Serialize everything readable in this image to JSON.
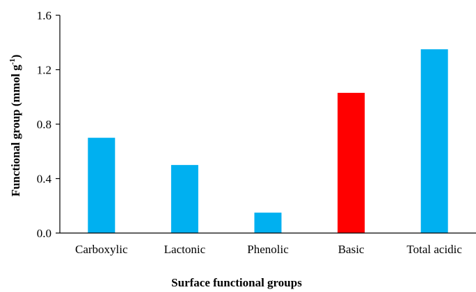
{
  "chart_data": {
    "type": "bar",
    "categories": [
      "Carboxylic",
      "Lactonic",
      "Phenolic",
      "Basic",
      "Total acidic"
    ],
    "values": [
      0.7,
      0.5,
      0.15,
      1.03,
      1.35
    ],
    "bar_colors": [
      "#00b0f0",
      "#00b0f0",
      "#00b0f0",
      "#ff0000",
      "#00b0f0"
    ],
    "title": "",
    "xlabel": "Surface functional groups",
    "ylabel": {
      "main": "Functional group (mmol g",
      "superscript": "-1",
      "close": ")"
    },
    "ylim": [
      0,
      1.6
    ],
    "yticks": [
      "0.0",
      "0.4",
      "0.8",
      "1.2",
      "1.6"
    ],
    "grid": false,
    "legend": "none"
  }
}
